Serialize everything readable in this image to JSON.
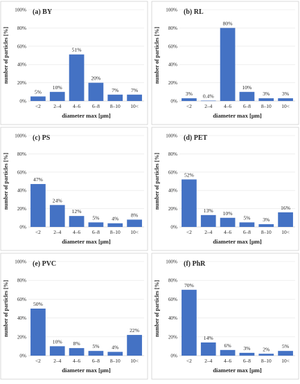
{
  "chart_data": [
    {
      "type": "bar",
      "title": "(a) BY",
      "categories": [
        "<2",
        "2–4",
        "4–6",
        "6–8",
        "8–10",
        "10<"
      ],
      "values": [
        5,
        10,
        51,
        20,
        7,
        7
      ],
      "value_labels": [
        "5%",
        "10%",
        "51%",
        "20%",
        "7%",
        "7%"
      ],
      "xlabel": "diameter max [μm]",
      "ylabel": "number of particles [%]",
      "ylim": [
        0,
        100
      ],
      "yticks": [
        0,
        20,
        40,
        60,
        80,
        100
      ],
      "ytick_labels": [
        "0%",
        "20%",
        "40%",
        "60%",
        "80%",
        "100%"
      ],
      "bar_color": "#4472c4"
    },
    {
      "type": "bar",
      "title": "(b) RL",
      "categories": [
        "<2",
        "2–4",
        "4–6",
        "6–8",
        "8–10",
        "10<"
      ],
      "values": [
        3,
        0.4,
        80,
        10,
        3,
        3
      ],
      "value_labels": [
        "3%",
        "0.4%",
        "80%",
        "10%",
        "3%",
        "3%"
      ],
      "xlabel": "diameter max [μm]",
      "ylabel": "number of particles [%]",
      "ylim": [
        0,
        100
      ],
      "yticks": [
        0,
        20,
        40,
        60,
        80,
        100
      ],
      "ytick_labels": [
        "0%",
        "20%",
        "40%",
        "60%",
        "80%",
        "100%"
      ],
      "bar_color": "#4472c4"
    },
    {
      "type": "bar",
      "title": "(c) PS",
      "categories": [
        "<2",
        "2–4",
        "4–6",
        "6–8",
        "8–10",
        "10<"
      ],
      "values": [
        47,
        24,
        12,
        5,
        4,
        8
      ],
      "value_labels": [
        "47%",
        "24%",
        "12%",
        "5%",
        "4%",
        "8%"
      ],
      "xlabel": "diameter max [μm]",
      "ylabel": "number of particles [%]",
      "ylim": [
        0,
        100
      ],
      "yticks": [
        0,
        20,
        40,
        60,
        80,
        100
      ],
      "ytick_labels": [
        "0%",
        "20%",
        "40%",
        "60%",
        "80%",
        "100%"
      ],
      "bar_color": "#4472c4"
    },
    {
      "type": "bar",
      "title": "(d) PET",
      "categories": [
        "<2",
        "2–4",
        "4–6",
        "6–8",
        "8–10",
        "10<"
      ],
      "values": [
        52,
        13,
        10,
        5,
        3,
        16
      ],
      "value_labels": [
        "52%",
        "13%",
        "10%",
        "5%",
        "3%",
        "16%"
      ],
      "xlabel": "diameter max [μm]",
      "ylabel": "number of particles [%]",
      "ylim": [
        0,
        100
      ],
      "yticks": [
        0,
        20,
        40,
        60,
        80,
        100
      ],
      "ytick_labels": [
        "0%",
        "20%",
        "40%",
        "60%",
        "80%",
        "100%"
      ],
      "bar_color": "#4472c4"
    },
    {
      "type": "bar",
      "title": "(e) PVC",
      "categories": [
        "<2",
        "2–4",
        "4–6",
        "6–8",
        "8–10",
        "10<"
      ],
      "values": [
        50,
        10,
        8,
        5,
        4,
        22
      ],
      "value_labels": [
        "50%",
        "10%",
        "8%",
        "5%",
        "4%",
        "22%"
      ],
      "xlabel": "diameter max [μm]",
      "ylabel": "number of particles [%]",
      "ylim": [
        0,
        100
      ],
      "yticks": [
        0,
        20,
        40,
        60,
        80,
        100
      ],
      "ytick_labels": [
        "0%",
        "20%",
        "40%",
        "60%",
        "80%",
        "100%"
      ],
      "bar_color": "#4472c4"
    },
    {
      "type": "bar",
      "title": "(f) PhR",
      "categories": [
        "<2",
        "2–4",
        "4–6",
        "6–8",
        "8–10",
        "10<"
      ],
      "values": [
        70,
        14,
        6,
        3,
        2,
        5
      ],
      "value_labels": [
        "70%",
        "14%",
        "6%",
        "3%",
        "2%",
        "5%"
      ],
      "xlabel": "diameter max [μm]",
      "ylabel": "number of particles [%]",
      "ylim": [
        0,
        100
      ],
      "yticks": [
        0,
        20,
        40,
        60,
        80,
        100
      ],
      "ytick_labels": [
        "0%",
        "20%",
        "40%",
        "60%",
        "80%",
        "100%"
      ],
      "bar_color": "#4472c4"
    }
  ]
}
